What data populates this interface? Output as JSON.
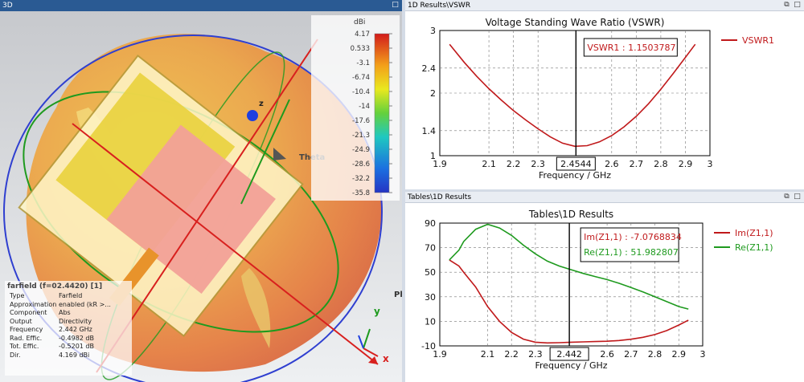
{
  "left_panel": {
    "title_label": "3D",
    "colorbar": {
      "unit": "dBi",
      "ticks": [
        "4.17",
        "0.533",
        "-3.1",
        "-6.74",
        "-10.4",
        "-14",
        "-17.6",
        "-21.3",
        "-24.9",
        "-28.6",
        "-32.2",
        "-35.8"
      ]
    },
    "axis_labels": {
      "z": "z",
      "theta": "Theta",
      "phi": "Ph",
      "y": "y",
      "x": "x"
    },
    "info": {
      "title": "farfield (f=02.4420) [1]",
      "rows": [
        {
          "key": "Type",
          "value": "Farfield"
        },
        {
          "key": "Approximation",
          "value": "enabled (kR >..."
        },
        {
          "key": "Component",
          "value": "Abs"
        },
        {
          "key": "Output",
          "value": "Directivity"
        },
        {
          "key": "Frequency",
          "value": "2.442 GHz"
        },
        {
          "key": "Rad. Effic.",
          "value": "-0.4982 dB"
        },
        {
          "key": "Tot. Effic.",
          "value": "-0.5201 dB"
        },
        {
          "key": "Dir.",
          "value": "4.169 dBi"
        }
      ]
    }
  },
  "top_panel": {
    "title": "1D Results\\VSWR"
  },
  "bottom_panel": {
    "title": "Tables\\1D Results"
  },
  "chart_data": [
    {
      "type": "line",
      "title": "Voltage Standing Wave Ratio (VSWR)",
      "xlabel": "Frequency / GHz",
      "ylabel": "",
      "xlim": [
        1.9,
        3.0
      ],
      "ylim": [
        1,
        3
      ],
      "xticks": [
        "1.9",
        "2.1",
        "2.2",
        "2.3",
        "2.4544",
        "2.6",
        "2.7",
        "2.8",
        "2.9",
        "3"
      ],
      "xtick_values": [
        1.9,
        2.1,
        2.2,
        2.3,
        2.4544,
        2.6,
        2.7,
        2.8,
        2.9,
        3.0
      ],
      "yticks": [
        "1",
        "1.4",
        "2",
        "2.4",
        "3"
      ],
      "ytick_values": [
        1,
        1.4,
        2,
        2.4,
        3
      ],
      "marker_x": 2.4544,
      "marker_label": "VSWR1 : 1.1503787",
      "grid": true,
      "legend": "top-right",
      "series": [
        {
          "name": "VSWR1",
          "color": "#c0191b",
          "x": [
            1.94,
            2.0,
            2.05,
            2.1,
            2.15,
            2.2,
            2.25,
            2.3,
            2.35,
            2.4,
            2.45,
            2.5,
            2.55,
            2.6,
            2.65,
            2.7,
            2.75,
            2.8,
            2.85,
            2.9,
            2.94
          ],
          "y": [
            2.78,
            2.49,
            2.27,
            2.07,
            1.89,
            1.72,
            1.57,
            1.43,
            1.3,
            1.2,
            1.15,
            1.16,
            1.22,
            1.32,
            1.46,
            1.63,
            1.83,
            2.06,
            2.31,
            2.57,
            2.78
          ]
        }
      ]
    },
    {
      "type": "line",
      "title": "Tables\\1D Results",
      "xlabel": "Frequency / GHz",
      "ylabel": "",
      "xlim": [
        1.9,
        3.0
      ],
      "ylim": [
        -10,
        90
      ],
      "xticks": [
        "1.9",
        "2.1",
        "2.2",
        "2.3",
        "2.442",
        "2.6",
        "2.7",
        "2.8",
        "2.9",
        "3"
      ],
      "xtick_values": [
        1.9,
        2.1,
        2.2,
        2.3,
        2.442,
        2.6,
        2.7,
        2.8,
        2.9,
        3.0
      ],
      "yticks": [
        "-10",
        "10",
        "30",
        "50",
        "70",
        "90"
      ],
      "ytick_values": [
        -10,
        10,
        30,
        50,
        70,
        90
      ],
      "marker_x": 2.442,
      "marker_labels": [
        {
          "text": "Im(Z1,1) : -7.0768834",
          "color": "#c0191b"
        },
        {
          "text": "Re(Z1,1) : 51.982807",
          "color": "#1e9a1e"
        }
      ],
      "grid": true,
      "legend": "top-right",
      "series": [
        {
          "name": "Im(Z1,1)",
          "color": "#c0191b",
          "x": [
            1.94,
            1.98,
            2.0,
            2.05,
            2.1,
            2.15,
            2.2,
            2.25,
            2.3,
            2.35,
            2.4,
            2.45,
            2.5,
            2.55,
            2.6,
            2.65,
            2.7,
            2.75,
            2.8,
            2.85,
            2.9,
            2.94
          ],
          "y": [
            60,
            55,
            50,
            38,
            22,
            10,
            1,
            -4.5,
            -7,
            -7.6,
            -7.4,
            -7,
            -6.7,
            -6.5,
            -6.2,
            -5.6,
            -4.6,
            -3,
            -0.8,
            2.5,
            7,
            11
          ]
        },
        {
          "name": "Re(Z1,1)",
          "color": "#1e9a1e",
          "x": [
            1.94,
            1.98,
            2.0,
            2.05,
            2.1,
            2.15,
            2.2,
            2.25,
            2.3,
            2.35,
            2.4,
            2.45,
            2.5,
            2.55,
            2.6,
            2.65,
            2.7,
            2.75,
            2.8,
            2.85,
            2.9,
            2.94
          ],
          "y": [
            60,
            68,
            75,
            85,
            89,
            86,
            80,
            72,
            65,
            59,
            55,
            52,
            49,
            46.5,
            44,
            41,
            37.5,
            34,
            30,
            26,
            22,
            20
          ]
        }
      ]
    }
  ]
}
